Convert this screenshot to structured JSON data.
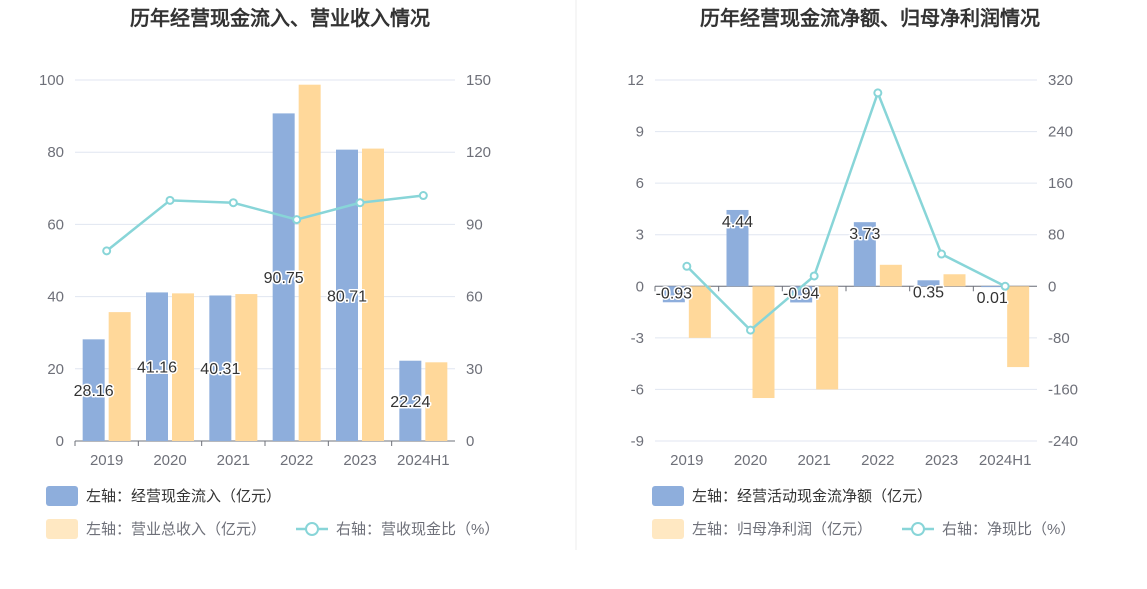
{
  "colors": {
    "bar_primary": "#8eaedc",
    "bar_secondary": "#ffd89a",
    "line": "#88d5d8",
    "axis_text": "#6e7079",
    "grid": "#e0e6f1",
    "title": "#333333"
  },
  "chart_data": [
    {
      "type": "bar",
      "title": "历年经营现金流入、营业收入情况",
      "categories": [
        "2019",
        "2020",
        "2021",
        "2022",
        "2023",
        "2024H1"
      ],
      "left_axis": {
        "ylim": [
          0,
          100
        ],
        "ticks": [
          "0",
          "20",
          "40",
          "60",
          "80",
          "100"
        ]
      },
      "right_axis": {
        "ylim": [
          0,
          150
        ],
        "ticks": [
          "0",
          "30",
          "60",
          "90",
          "120",
          "150"
        ]
      },
      "series": [
        {
          "name": "左轴：经营现金流入（亿元）",
          "type": "bar",
          "axis": "left",
          "values": [
            28.16,
            41.16,
            40.31,
            90.75,
            80.71,
            22.24
          ],
          "labels": [
            "28.16",
            "41.16",
            "40.31",
            "90.75",
            "80.71",
            "22.24"
          ]
        },
        {
          "name": "左轴：营业总收入（亿元）",
          "type": "bar",
          "axis": "left",
          "values": [
            35.7,
            40.9,
            40.7,
            98.7,
            81.0,
            21.8
          ]
        },
        {
          "name": "右轴：营收现金比（%）",
          "type": "line",
          "axis": "right",
          "values": [
            79,
            100,
            99,
            92,
            99,
            102
          ]
        }
      ],
      "grid": true,
      "legend_position": "bottom-left"
    },
    {
      "type": "bar",
      "title": "历年经营现金流净额、归母净利润情况",
      "categories": [
        "2019",
        "2020",
        "2021",
        "2022",
        "2023",
        "2024H1"
      ],
      "left_axis": {
        "ylim": [
          -9,
          12
        ],
        "ticks": [
          "-9",
          "-6",
          "-3",
          "0",
          "3",
          "6",
          "9",
          "12"
        ]
      },
      "right_axis": {
        "ylim": [
          -240,
          320
        ],
        "ticks": [
          "-240",
          "-160",
          "-80",
          "0",
          "80",
          "160",
          "240",
          "320"
        ]
      },
      "series": [
        {
          "name": "左轴：经营活动现金流净额（亿元）",
          "type": "bar",
          "axis": "left",
          "values": [
            -0.93,
            4.44,
            -0.94,
            3.73,
            0.35,
            0.01
          ],
          "labels": [
            "-0.93",
            "4.44",
            "-0.94",
            "3.73",
            "0.35",
            "0.01"
          ]
        },
        {
          "name": "左轴：归母净利润（亿元）",
          "type": "bar",
          "axis": "left",
          "values": [
            -3.0,
            -6.5,
            -6.0,
            1.25,
            0.7,
            -4.7
          ]
        },
        {
          "name": "右轴：净现比（%）",
          "type": "line",
          "axis": "right",
          "values": [
            31,
            -68,
            16,
            300,
            50,
            0
          ]
        }
      ],
      "grid": true,
      "legend_position": "bottom-left"
    }
  ]
}
